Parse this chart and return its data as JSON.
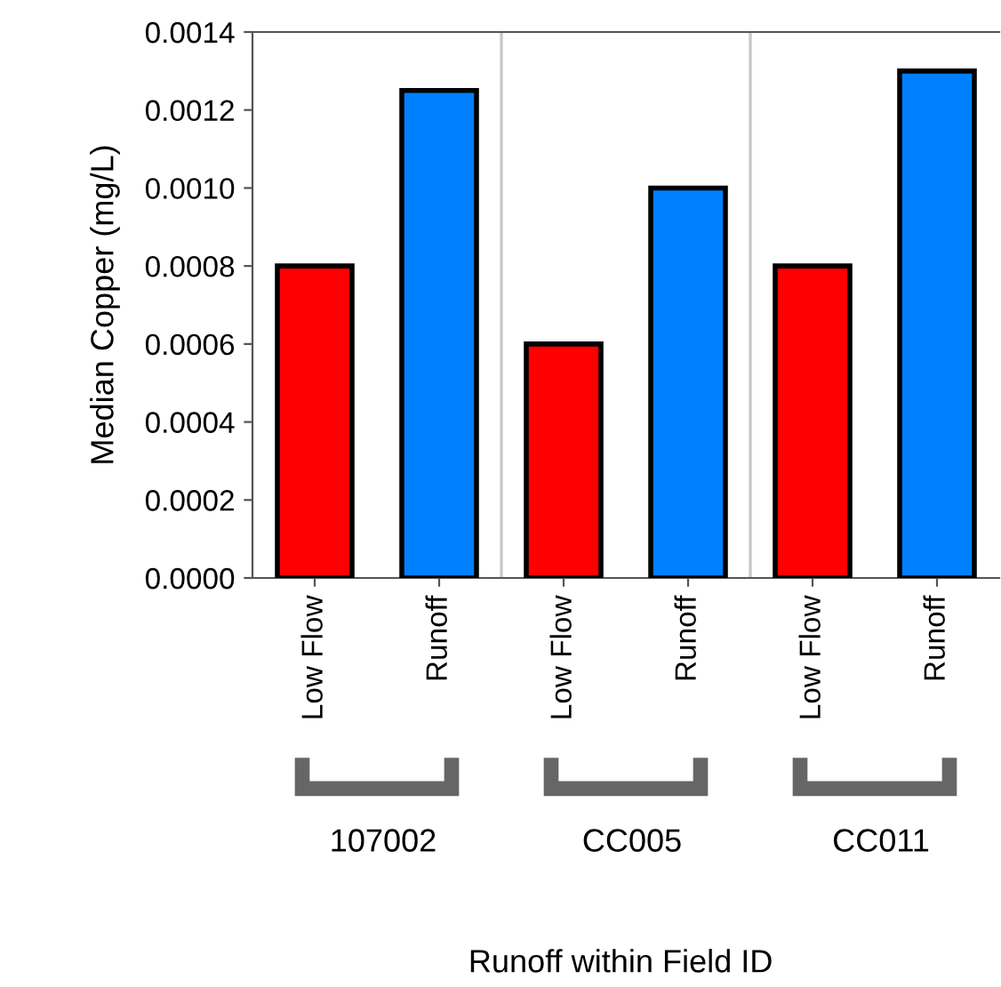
{
  "chart_data": {
    "type": "bar",
    "ylabel": "Median Copper (mg/L)",
    "categories": [
      "Low Flow",
      "Runoff",
      "Low Flow",
      "Runoff",
      "Low Flow",
      "Runoff"
    ],
    "values": [
      0.0008,
      0.00125,
      0.0006,
      0.001,
      0.0008,
      0.0013
    ],
    "colors": [
      "#ff0000",
      "#0080ff",
      "#ff0000",
      "#0080ff",
      "#ff0000",
      "#0080ff"
    ],
    "ylim": [
      0,
      0.0014
    ],
    "yticks": [
      {
        "value": 0,
        "label": "0.0000"
      },
      {
        "value": 0.0002,
        "label": "0.0002"
      },
      {
        "value": 0.0004,
        "label": "0.0004"
      },
      {
        "value": 0.0006,
        "label": "0.0006"
      },
      {
        "value": 0.0008,
        "label": "0.0008"
      },
      {
        "value": 0.001,
        "label": "0.0010"
      },
      {
        "value": 0.0012,
        "label": "0.0012"
      },
      {
        "value": 0.0014,
        "label": "0.0014"
      }
    ],
    "annotations": [
      "107002",
      "CC005",
      "CC011",
      "Runoff within Field ID"
    ],
    "grid": false,
    "legend": false
  }
}
